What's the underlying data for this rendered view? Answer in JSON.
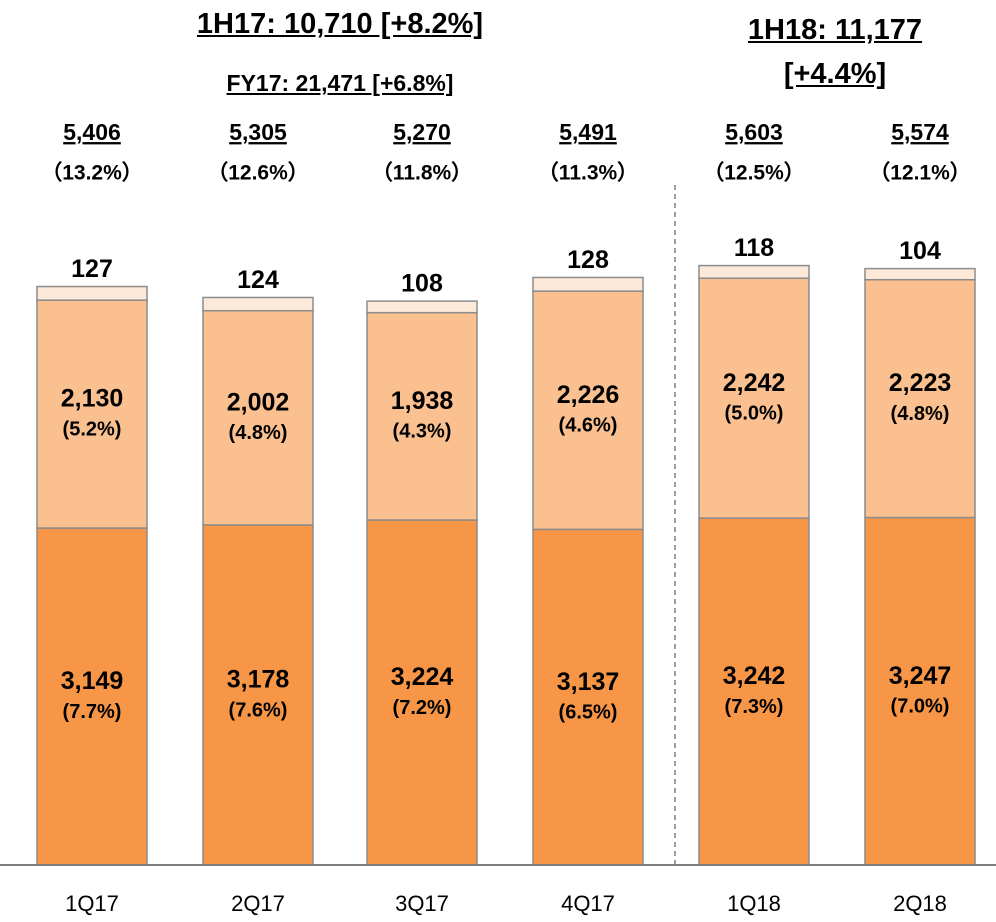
{
  "chart_data": {
    "type": "stacked_bar",
    "headers": {
      "h1_17": "1H17: 10,710 [+8.2%]",
      "fy17": "FY17: 21,471 [+6.8%]",
      "h1_18": "1H18: 11,177 [+4.4%]"
    },
    "categories": [
      "1Q17",
      "2Q17",
      "3Q17",
      "4Q17",
      "1Q18",
      "2Q18"
    ],
    "series": [
      {
        "color": "#f79646",
        "values": [
          3149,
          3178,
          3224,
          3137,
          3242,
          3247
        ],
        "value_labels": [
          "3,149",
          "3,178",
          "3,224",
          "3,137",
          "3,242",
          "3,247"
        ],
        "growth_labels": [
          "(7.7%)",
          "(7.6%)",
          "(7.2%)",
          "(6.5%)",
          "(7.3%)",
          "(7.0%)"
        ]
      },
      {
        "color": "#fac090",
        "values": [
          2130,
          2002,
          1938,
          2226,
          2242,
          2223
        ],
        "value_labels": [
          "2,130",
          "2,002",
          "1,938",
          "2,226",
          "2,242",
          "2,223"
        ],
        "growth_labels": [
          "(5.2%)",
          "(4.8%)",
          "(4.3%)",
          "(4.6%)",
          "(5.0%)",
          "(4.8%)"
        ]
      },
      {
        "color": "#fde9d9",
        "values": [
          127,
          124,
          108,
          128,
          118,
          104
        ]
      }
    ],
    "total_labels": [
      "5,406",
      "5,305",
      "5,270",
      "5,491",
      "5,603",
      "5,574"
    ],
    "total_growth_labels": [
      "（13.2%）",
      "（12.6%）",
      "（11.8%）",
      "（11.3%）",
      "（12.5%）",
      "（12.1%）"
    ],
    "ylim": [
      0,
      8000
    ]
  }
}
